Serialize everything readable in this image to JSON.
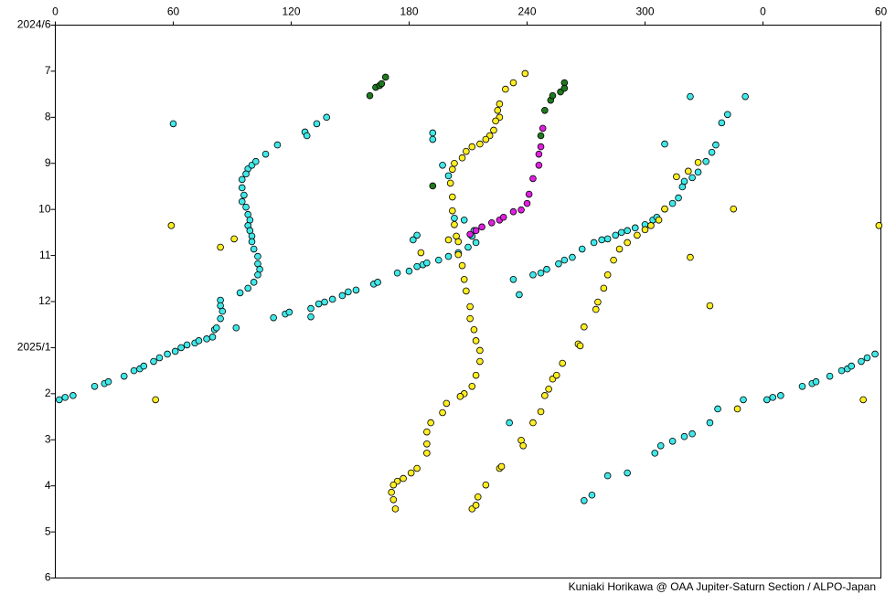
{
  "chart_data": {
    "type": "scatter",
    "credit": "Kuniaki Horikawa @ OAA Jupiter-Saturn Section / ALPO-Japan",
    "xlim": [
      0,
      420
    ],
    "xticks": [
      0,
      60,
      120,
      180,
      240,
      300,
      {
        "value": 360,
        "label": "0"
      },
      {
        "value": 420,
        "label": "60"
      }
    ],
    "ylim": [
      0,
      12
    ],
    "y_inverted": true,
    "yticks": [
      {
        "value": 0,
        "label": "2024/6"
      },
      {
        "value": 1,
        "label": "7"
      },
      {
        "value": 2,
        "label": "8"
      },
      {
        "value": 3,
        "label": "9"
      },
      {
        "value": 4,
        "label": "10"
      },
      {
        "value": 5,
        "label": "11"
      },
      {
        "value": 6,
        "label": "12"
      },
      {
        "value": 7,
        "label": "2025/1"
      },
      {
        "value": 8,
        "label": "2"
      },
      {
        "value": 9,
        "label": "3"
      },
      {
        "value": 10,
        "label": "4"
      },
      {
        "value": 11,
        "label": "5"
      },
      {
        "value": 12,
        "label": "6"
      }
    ],
    "grid": false,
    "series": [
      {
        "color": "#40e8e8",
        "x": [
          2,
          5,
          9,
          20,
          25,
          27,
          35,
          40,
          43,
          45,
          50,
          53,
          57,
          61,
          64,
          67,
          71,
          73,
          77,
          80,
          81,
          92,
          111,
          117,
          119,
          130,
          130,
          134,
          137,
          141,
          146,
          149,
          153,
          162,
          164,
          174,
          180,
          184,
          187,
          189,
          195,
          200,
          205,
          210,
          214,
          233,
          236,
          243,
          247,
          250,
          256,
          259,
          263,
          268,
          274,
          278,
          281,
          285,
          288,
          291,
          295,
          300,
          304,
          306,
          310,
          314,
          317,
          319,
          320,
          324,
          327,
          331,
          334,
          336,
          339,
          342,
          310,
          323,
          351,
          362,
          365,
          369,
          380,
          385,
          387,
          394,
          400,
          403,
          405,
          410,
          413,
          417,
          350,
          337,
          333,
          324,
          320,
          314,
          308,
          305,
          291,
          281,
          273,
          269,
          231,
          98,
          97,
          95,
          95,
          96,
          95,
          97,
          98,
          99,
          98,
          99,
          100,
          100,
          101,
          103,
          103,
          104,
          103,
          101,
          98,
          94,
          84,
          84,
          85,
          84,
          82,
          60,
          100,
          102,
          107,
          113,
          127,
          128,
          133,
          138,
          192,
          192,
          184,
          182,
          197,
          200,
          203,
          208,
          212,
          213
        ],
        "values": [
          8.13,
          8.08,
          8.04,
          7.84,
          7.78,
          7.74,
          7.62,
          7.5,
          7.46,
          7.4,
          7.3,
          7.22,
          7.14,
          7.08,
          7.0,
          6.94,
          6.9,
          6.85,
          6.81,
          6.77,
          6.61,
          6.57,
          6.35,
          6.27,
          6.23,
          6.15,
          6.33,
          6.05,
          6.01,
          5.95,
          5.87,
          5.79,
          5.75,
          5.62,
          5.58,
          5.38,
          5.34,
          5.24,
          5.2,
          5.16,
          5.1,
          5.02,
          4.94,
          4.82,
          4.72,
          5.52,
          5.85,
          5.42,
          5.38,
          5.3,
          5.18,
          5.1,
          5.04,
          4.86,
          4.72,
          4.66,
          4.64,
          4.56,
          4.5,
          4.46,
          4.4,
          4.33,
          4.23,
          4.17,
          3.99,
          3.87,
          3.75,
          3.51,
          3.39,
          3.31,
          3.19,
          2.96,
          2.76,
          2.6,
          2.12,
          1.94,
          2.58,
          1.55,
          1.55,
          8.13,
          8.08,
          8.04,
          7.84,
          7.78,
          7.74,
          7.62,
          7.5,
          7.46,
          7.4,
          7.3,
          7.22,
          7.14,
          8.13,
          8.33,
          8.63,
          8.87,
          8.93,
          9.03,
          9.13,
          9.29,
          9.72,
          9.78,
          10.2,
          10.32,
          8.63,
          3.12,
          3.23,
          3.35,
          3.53,
          3.69,
          3.83,
          3.95,
          4.11,
          4.23,
          4.35,
          4.46,
          4.58,
          4.7,
          4.86,
          5.02,
          5.18,
          5.3,
          5.42,
          5.58,
          5.71,
          5.81,
          5.97,
          6.09,
          6.21,
          6.37,
          6.57,
          2.14,
          3.04,
          2.96,
          2.8,
          2.6,
          2.32,
          2.4,
          2.14,
          2.0,
          2.34,
          2.48,
          4.56,
          4.66,
          3.04,
          3.27,
          4.19,
          4.23,
          4.58,
          4.46
        ]
      },
      {
        "color": "#ffee22",
        "x": [
          239,
          233,
          229,
          226,
          225,
          226,
          224,
          223,
          221,
          219,
          216,
          212,
          209,
          207,
          203,
          202,
          201,
          202,
          202,
          203,
          204,
          205,
          205,
          207,
          208,
          209,
          211,
          211,
          213,
          214,
          216,
          216,
          214,
          212,
          208,
          206,
          199,
          197,
          191,
          189,
          189,
          189,
          184,
          181,
          177,
          174,
          172,
          171,
          172,
          173,
          212,
          214,
          215,
          219,
          226,
          227,
          237,
          238,
          243,
          247,
          249,
          251,
          253,
          255,
          258,
          266,
          267,
          269,
          275,
          276,
          279,
          281,
          284,
          287,
          291,
          296,
          300,
          303,
          307,
          310,
          316,
          322,
          327,
          345,
          59,
          84,
          91,
          186,
          200,
          323,
          333,
          347,
          411,
          419,
          51
        ],
        "values": [
          1.05,
          1.25,
          1.39,
          1.71,
          1.85,
          2.0,
          2.08,
          2.28,
          2.4,
          2.48,
          2.58,
          2.64,
          2.74,
          2.88,
          3.0,
          3.13,
          3.43,
          3.73,
          4.03,
          4.33,
          4.58,
          4.7,
          4.98,
          5.22,
          5.52,
          5.77,
          6.11,
          6.37,
          6.61,
          6.85,
          7.06,
          7.3,
          7.6,
          7.84,
          8.0,
          8.06,
          8.21,
          8.41,
          8.63,
          8.83,
          9.09,
          9.29,
          9.62,
          9.72,
          9.84,
          9.9,
          9.98,
          10.14,
          10.3,
          10.5,
          10.5,
          10.42,
          10.24,
          9.98,
          9.62,
          9.58,
          9.01,
          9.13,
          8.63,
          8.39,
          8.04,
          7.9,
          7.68,
          7.6,
          7.34,
          6.92,
          6.96,
          6.55,
          6.17,
          6.01,
          5.71,
          5.42,
          5.1,
          4.86,
          4.72,
          4.56,
          4.44,
          4.35,
          4.23,
          3.99,
          3.29,
          3.17,
          2.98,
          3.99,
          4.35,
          4.82,
          4.64,
          4.94,
          4.66,
          5.04,
          6.09,
          8.33,
          8.13,
          4.35,
          8.13
        ]
      },
      {
        "color": "#e020e0",
        "x": [
          211,
          214,
          217,
          222,
          226,
          228,
          233,
          237,
          240,
          241,
          243,
          246,
          246,
          247,
          248
        ],
        "values": [
          4.54,
          4.46,
          4.38,
          4.29,
          4.23,
          4.17,
          4.05,
          4.01,
          3.87,
          3.67,
          3.33,
          3.04,
          2.8,
          2.64,
          2.24
        ]
      },
      {
        "color": "#1e7a1e",
        "x": [
          160,
          163,
          165,
          166,
          168,
          192,
          247,
          249,
          252,
          253,
          257,
          259,
          259
        ],
        "values": [
          1.53,
          1.35,
          1.31,
          1.27,
          1.13,
          3.49,
          2.4,
          1.85,
          1.63,
          1.53,
          1.45,
          1.25,
          1.37
        ]
      }
    ]
  }
}
